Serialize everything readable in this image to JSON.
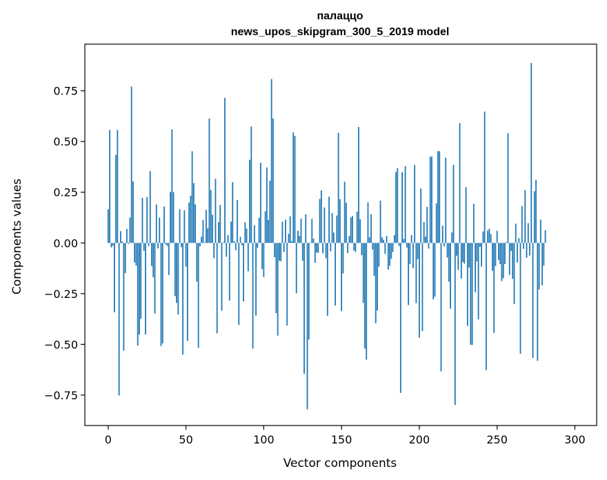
{
  "chart_data": {
    "type": "bar",
    "title": "палаццо",
    "subtitle": "news_upos_skipgram_300_5_2019 model",
    "xlabel": "Vector components",
    "ylabel": "Components values",
    "xlim": [
      -15,
      314
    ],
    "ylim": [
      -0.9,
      0.98
    ],
    "xticks": [
      0,
      50,
      100,
      150,
      200,
      250,
      300
    ],
    "xtick_labels": [
      "0",
      "50",
      "100",
      "150",
      "200",
      "250",
      "300"
    ],
    "yticks": [
      -0.75,
      -0.5,
      -0.25,
      0.0,
      0.25,
      0.5,
      0.75
    ],
    "ytick_labels": [
      "−0.75",
      "−0.50",
      "−0.25",
      "0.00",
      "0.25",
      "0.50",
      "0.75"
    ],
    "grid": false,
    "bar_color": "#1f77b4",
    "values": [
      0.166,
      0.557,
      -0.022,
      -0.014,
      -0.342,
      0.434,
      0.557,
      -0.752,
      0.058,
      0.007,
      -0.531,
      -0.149,
      0.069,
      -0.005,
      0.125,
      0.771,
      0.303,
      -0.096,
      -0.111,
      -0.506,
      -0.452,
      -0.374,
      0.222,
      -0.039,
      -0.451,
      0.226,
      -0.015,
      0.354,
      -0.114,
      -0.169,
      -0.348,
      0.19,
      -0.027,
      0.125,
      -0.508,
      -0.495,
      0.18,
      -0.007,
      -0.014,
      -0.158,
      0.252,
      0.56,
      0.25,
      -0.262,
      -0.296,
      -0.353,
      0.166,
      -0.021,
      -0.55,
      0.161,
      -0.117,
      -0.483,
      0.199,
      0.233,
      0.452,
      0.295,
      0.19,
      -0.191,
      -0.517,
      -0.017,
      0.031,
      0.114,
      0.003,
      0.163,
      0.072,
      0.613,
      0.261,
      0.139,
      -0.075,
      0.316,
      -0.446,
      0.103,
      0.187,
      -0.334,
      0.004,
      0.715,
      -0.068,
      0.039,
      -0.284,
      0.105,
      0.3,
      0.009,
      -0.036,
      0.212,
      -0.405,
      0.03,
      -0.011,
      -0.288,
      0.102,
      0.071,
      -0.14,
      0.41,
      0.574,
      -0.521,
      0.087,
      -0.358,
      -0.024,
      0.124,
      0.395,
      -0.129,
      -0.168,
      0.156,
      0.372,
      0.114,
      0.307,
      0.808,
      0.613,
      -0.07,
      -0.346,
      -0.457,
      -0.088,
      -0.09,
      0.105,
      -0.044,
      0.115,
      -0.407,
      0.045,
      0.131,
      0.009,
      0.545,
      0.528,
      -0.248,
      0.06,
      0.035,
      0.119,
      -0.088,
      -0.645,
      0.141,
      -0.82,
      -0.476,
      0.002,
      0.119,
      0.021,
      -0.098,
      -0.047,
      -0.049,
      0.217,
      0.259,
      -0.051,
      0.175,
      -0.075,
      -0.359,
      0.228,
      -0.041,
      0.147,
      0.051,
      -0.309,
      0.135,
      0.543,
      0.216,
      -0.335,
      -0.15,
      0.302,
      0.198,
      -0.05,
      0.035,
      0.126,
      0.133,
      -0.037,
      -0.045,
      0.154,
      0.572,
      0.117,
      -0.06,
      -0.296,
      -0.521,
      -0.575,
      0.2,
      0.029,
      0.142,
      -0.033,
      -0.162,
      -0.396,
      -0.333,
      -0.117,
      0.209,
      0.028,
      0.016,
      -0.054,
      0.035,
      -0.131,
      -0.112,
      -0.078,
      -0.044,
      0.039,
      0.35,
      0.369,
      -0.015,
      -0.739,
      0.348,
      0.02,
      0.379,
      -0.023,
      -0.306,
      -0.104,
      0.039,
      -0.124,
      0.384,
      -0.297,
      -0.08,
      -0.467,
      0.268,
      -0.434,
      0.103,
      0.031,
      0.178,
      -0.028,
      0.425,
      0.426,
      -0.278,
      -0.264,
      0.195,
      0.453,
      0.452,
      -0.633,
      0.085,
      -0.017,
      0.42,
      -0.072,
      -0.191,
      -0.324,
      0.052,
      0.385,
      -0.799,
      -0.063,
      -0.133,
      0.591,
      -0.176,
      -0.094,
      -0.102,
      0.275,
      -0.409,
      -0.121,
      -0.502,
      -0.503,
      0.193,
      -0.243,
      -0.091,
      -0.377,
      -0.019,
      -0.117,
      0.057,
      0.648,
      -0.627,
      0.061,
      0.07,
      0.044,
      -0.137,
      -0.444,
      -0.114,
      0.06,
      -0.084,
      -0.104,
      -0.188,
      -0.174,
      -0.104,
      0.004,
      0.541,
      -0.158,
      -0.039,
      -0.177,
      -0.302,
      0.095,
      -0.097,
      0.024,
      -0.546,
      0.181,
      -0.029,
      0.261,
      -0.073,
      0.098,
      -0.062,
      0.887,
      -0.567,
      0.255,
      0.311,
      -0.581,
      -0.229,
      0.115,
      -0.209,
      -0.112,
      0.063
    ]
  }
}
